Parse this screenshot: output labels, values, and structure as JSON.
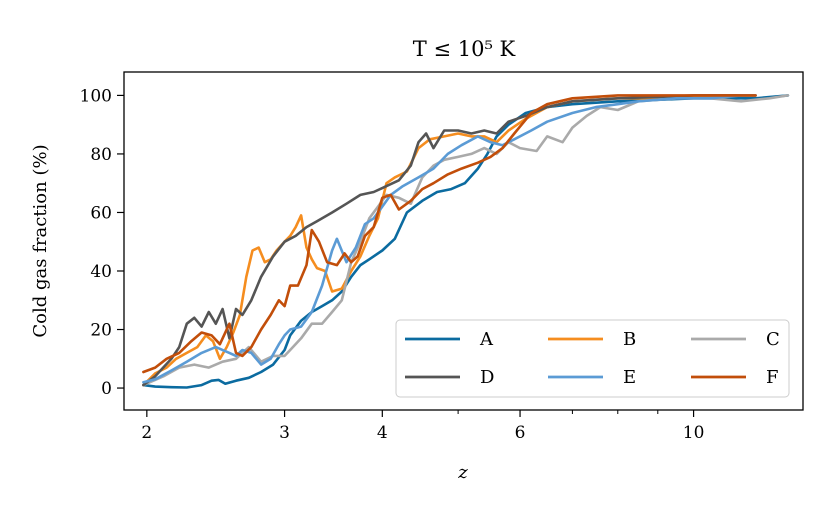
{
  "chart_data": {
    "type": "line",
    "title": "T ≤ 10⁵ K",
    "xlabel": "z",
    "ylabel": "Cold gas fraction (%)",
    "xscale": "log",
    "xlim": [
      1.87,
      13.8
    ],
    "ylim": [
      -7.5,
      108
    ],
    "xticks_major": [
      2,
      3,
      4,
      6,
      10
    ],
    "xticks_minor": [
      5,
      7,
      8,
      9
    ],
    "yticks": [
      0,
      20,
      40,
      60,
      80,
      100
    ],
    "grid": false,
    "legend": {
      "position": "lower right",
      "columns": 3
    },
    "series": [
      {
        "name": "A",
        "color": "#0b6ba0",
        "points": [
          [
            1.98,
            1
          ],
          [
            2.05,
            0.5
          ],
          [
            2.15,
            0.3
          ],
          [
            2.25,
            0.2
          ],
          [
            2.35,
            1
          ],
          [
            2.42,
            2.5
          ],
          [
            2.47,
            2.8
          ],
          [
            2.52,
            1.5
          ],
          [
            2.6,
            2.5
          ],
          [
            2.7,
            3.5
          ],
          [
            2.8,
            5.5
          ],
          [
            2.9,
            8
          ],
          [
            3.0,
            13
          ],
          [
            3.05,
            18
          ],
          [
            3.15,
            23
          ],
          [
            3.25,
            26
          ],
          [
            3.35,
            28
          ],
          [
            3.45,
            30
          ],
          [
            3.55,
            33
          ],
          [
            3.65,
            38
          ],
          [
            3.75,
            42
          ],
          [
            3.85,
            44
          ],
          [
            4.0,
            47
          ],
          [
            4.15,
            51
          ],
          [
            4.3,
            60
          ],
          [
            4.5,
            64
          ],
          [
            4.7,
            67
          ],
          [
            4.9,
            68
          ],
          [
            5.1,
            70
          ],
          [
            5.3,
            75
          ],
          [
            5.45,
            80
          ],
          [
            5.6,
            86
          ],
          [
            5.8,
            90
          ],
          [
            6.1,
            94
          ],
          [
            6.5,
            96
          ],
          [
            7.0,
            97
          ],
          [
            8.0,
            98
          ],
          [
            9.0,
            98.5
          ],
          [
            10.0,
            99
          ],
          [
            11.0,
            99
          ],
          [
            12.0,
            99
          ],
          [
            13.2,
            100
          ]
        ]
      },
      {
        "name": "B",
        "color": "#f58d1f",
        "points": [
          [
            1.98,
            1
          ],
          [
            2.05,
            5
          ],
          [
            2.12,
            7
          ],
          [
            2.18,
            10
          ],
          [
            2.25,
            12
          ],
          [
            2.32,
            14
          ],
          [
            2.38,
            18
          ],
          [
            2.43,
            16
          ],
          [
            2.48,
            10
          ],
          [
            2.53,
            14
          ],
          [
            2.58,
            19
          ],
          [
            2.63,
            25
          ],
          [
            2.68,
            38
          ],
          [
            2.73,
            47
          ],
          [
            2.78,
            48
          ],
          [
            2.83,
            43
          ],
          [
            2.88,
            44
          ],
          [
            2.93,
            47
          ],
          [
            3.0,
            50
          ],
          [
            3.05,
            52
          ],
          [
            3.1,
            55
          ],
          [
            3.15,
            59
          ],
          [
            3.2,
            48
          ],
          [
            3.25,
            44
          ],
          [
            3.3,
            41
          ],
          [
            3.38,
            40
          ],
          [
            3.45,
            33
          ],
          [
            3.55,
            34
          ],
          [
            3.65,
            40
          ],
          [
            3.75,
            45
          ],
          [
            3.85,
            52
          ],
          [
            3.95,
            58
          ],
          [
            4.05,
            70
          ],
          [
            4.15,
            72
          ],
          [
            4.3,
            74
          ],
          [
            4.45,
            82
          ],
          [
            4.6,
            85
          ],
          [
            4.8,
            86
          ],
          [
            5.0,
            87
          ],
          [
            5.2,
            86
          ],
          [
            5.4,
            86
          ],
          [
            5.6,
            84
          ],
          [
            5.8,
            88
          ],
          [
            6.1,
            92
          ],
          [
            6.5,
            96
          ],
          [
            7.0,
            98
          ],
          [
            8.0,
            99
          ],
          [
            9.0,
            99
          ],
          [
            10.0,
            100
          ],
          [
            11.0,
            100
          ],
          [
            12.0,
            100
          ]
        ]
      },
      {
        "name": "C",
        "color": "#aaaaaa",
        "points": [
          [
            1.98,
            1
          ],
          [
            2.1,
            4
          ],
          [
            2.2,
            7
          ],
          [
            2.3,
            8
          ],
          [
            2.4,
            7
          ],
          [
            2.5,
            9
          ],
          [
            2.6,
            10
          ],
          [
            2.7,
            14
          ],
          [
            2.8,
            9
          ],
          [
            2.9,
            11
          ],
          [
            3.0,
            11
          ],
          [
            3.05,
            13
          ],
          [
            3.15,
            17
          ],
          [
            3.25,
            22
          ],
          [
            3.35,
            22
          ],
          [
            3.45,
            26
          ],
          [
            3.55,
            30
          ],
          [
            3.65,
            43
          ],
          [
            3.75,
            50
          ],
          [
            3.85,
            58
          ],
          [
            3.95,
            62
          ],
          [
            4.05,
            66
          ],
          [
            4.2,
            65
          ],
          [
            4.35,
            63
          ],
          [
            4.5,
            72
          ],
          [
            4.65,
            76
          ],
          [
            4.8,
            78
          ],
          [
            5.0,
            79
          ],
          [
            5.2,
            80
          ],
          [
            5.4,
            82
          ],
          [
            5.6,
            80
          ],
          [
            5.8,
            84
          ],
          [
            6.0,
            82
          ],
          [
            6.3,
            81
          ],
          [
            6.5,
            86
          ],
          [
            6.8,
            84
          ],
          [
            7.0,
            89
          ],
          [
            7.3,
            93
          ],
          [
            7.6,
            96
          ],
          [
            8.0,
            95
          ],
          [
            8.5,
            98
          ],
          [
            9.5,
            99
          ],
          [
            10.5,
            99
          ],
          [
            11.5,
            98
          ],
          [
            12.5,
            99
          ],
          [
            13.2,
            100
          ]
        ]
      },
      {
        "name": "D",
        "color": "#555555",
        "points": [
          [
            1.98,
            1
          ],
          [
            2.05,
            4
          ],
          [
            2.15,
            10
          ],
          [
            2.2,
            14
          ],
          [
            2.25,
            22
          ],
          [
            2.3,
            24
          ],
          [
            2.35,
            21
          ],
          [
            2.4,
            26
          ],
          [
            2.45,
            22
          ],
          [
            2.5,
            27
          ],
          [
            2.55,
            17
          ],
          [
            2.6,
            27
          ],
          [
            2.65,
            25
          ],
          [
            2.72,
            30
          ],
          [
            2.8,
            38
          ],
          [
            2.9,
            45
          ],
          [
            3.0,
            50
          ],
          [
            3.1,
            52
          ],
          [
            3.2,
            55
          ],
          [
            3.3,
            57
          ],
          [
            3.45,
            60
          ],
          [
            3.6,
            63
          ],
          [
            3.75,
            66
          ],
          [
            3.9,
            67
          ],
          [
            4.05,
            69
          ],
          [
            4.2,
            71
          ],
          [
            4.35,
            76
          ],
          [
            4.45,
            84
          ],
          [
            4.55,
            87
          ],
          [
            4.65,
            82
          ],
          [
            4.8,
            88
          ],
          [
            5.0,
            88
          ],
          [
            5.2,
            87
          ],
          [
            5.4,
            88
          ],
          [
            5.6,
            87
          ],
          [
            5.8,
            91
          ],
          [
            6.1,
            93
          ],
          [
            6.5,
            96
          ],
          [
            7.0,
            98
          ],
          [
            8.0,
            99
          ],
          [
            9.0,
            99.5
          ],
          [
            10.0,
            100
          ],
          [
            11.0,
            100
          ],
          [
            12.0,
            100
          ]
        ]
      },
      {
        "name": "E",
        "color": "#5b9bd5",
        "points": [
          [
            1.98,
            2
          ],
          [
            2.05,
            3
          ],
          [
            2.15,
            6
          ],
          [
            2.25,
            9
          ],
          [
            2.35,
            12
          ],
          [
            2.45,
            14
          ],
          [
            2.55,
            12
          ],
          [
            2.6,
            11
          ],
          [
            2.65,
            13
          ],
          [
            2.72,
            12
          ],
          [
            2.8,
            8
          ],
          [
            2.88,
            10
          ],
          [
            2.95,
            15
          ],
          [
            3.0,
            18
          ],
          [
            3.05,
            20
          ],
          [
            3.15,
            21
          ],
          [
            3.25,
            26
          ],
          [
            3.35,
            35
          ],
          [
            3.45,
            47
          ],
          [
            3.5,
            51
          ],
          [
            3.6,
            43
          ],
          [
            3.7,
            48
          ],
          [
            3.8,
            56
          ],
          [
            3.9,
            58
          ],
          [
            4.0,
            62
          ],
          [
            4.1,
            66
          ],
          [
            4.25,
            69
          ],
          [
            4.45,
            72
          ],
          [
            4.65,
            75
          ],
          [
            4.85,
            80
          ],
          [
            5.05,
            83
          ],
          [
            5.3,
            86
          ],
          [
            5.5,
            84
          ],
          [
            5.7,
            83
          ],
          [
            5.9,
            85
          ],
          [
            6.2,
            88
          ],
          [
            6.5,
            91
          ],
          [
            7.0,
            94
          ],
          [
            7.5,
            96
          ],
          [
            8.0,
            97
          ],
          [
            8.5,
            98
          ],
          [
            9.5,
            99
          ],
          [
            10.5,
            99
          ],
          [
            11.5,
            100
          ],
          [
            12.0,
            100
          ]
        ]
      },
      {
        "name": "F",
        "color": "#c24e0a",
        "points": [
          [
            1.98,
            5.5
          ],
          [
            2.05,
            7
          ],
          [
            2.12,
            10
          ],
          [
            2.2,
            12
          ],
          [
            2.28,
            16
          ],
          [
            2.35,
            19
          ],
          [
            2.42,
            18
          ],
          [
            2.48,
            15
          ],
          [
            2.55,
            22
          ],
          [
            2.6,
            12
          ],
          [
            2.65,
            11
          ],
          [
            2.72,
            14
          ],
          [
            2.8,
            20
          ],
          [
            2.88,
            25
          ],
          [
            2.95,
            30
          ],
          [
            3.0,
            28
          ],
          [
            3.05,
            35
          ],
          [
            3.12,
            35
          ],
          [
            3.2,
            42
          ],
          [
            3.25,
            54
          ],
          [
            3.32,
            50
          ],
          [
            3.4,
            43
          ],
          [
            3.5,
            42
          ],
          [
            3.58,
            46
          ],
          [
            3.65,
            43
          ],
          [
            3.72,
            45
          ],
          [
            3.8,
            52
          ],
          [
            3.9,
            55
          ],
          [
            4.0,
            65
          ],
          [
            4.1,
            66
          ],
          [
            4.2,
            61
          ],
          [
            4.35,
            64
          ],
          [
            4.5,
            68
          ],
          [
            4.65,
            70
          ],
          [
            4.85,
            73
          ],
          [
            5.05,
            75
          ],
          [
            5.3,
            77
          ],
          [
            5.5,
            79
          ],
          [
            5.7,
            82
          ],
          [
            5.9,
            87
          ],
          [
            6.2,
            94
          ],
          [
            6.5,
            97
          ],
          [
            7.0,
            99
          ],
          [
            8.0,
            100
          ],
          [
            9.0,
            100
          ],
          [
            10.0,
            100
          ],
          [
            11.0,
            100
          ],
          [
            12.0,
            100
          ]
        ]
      }
    ]
  }
}
